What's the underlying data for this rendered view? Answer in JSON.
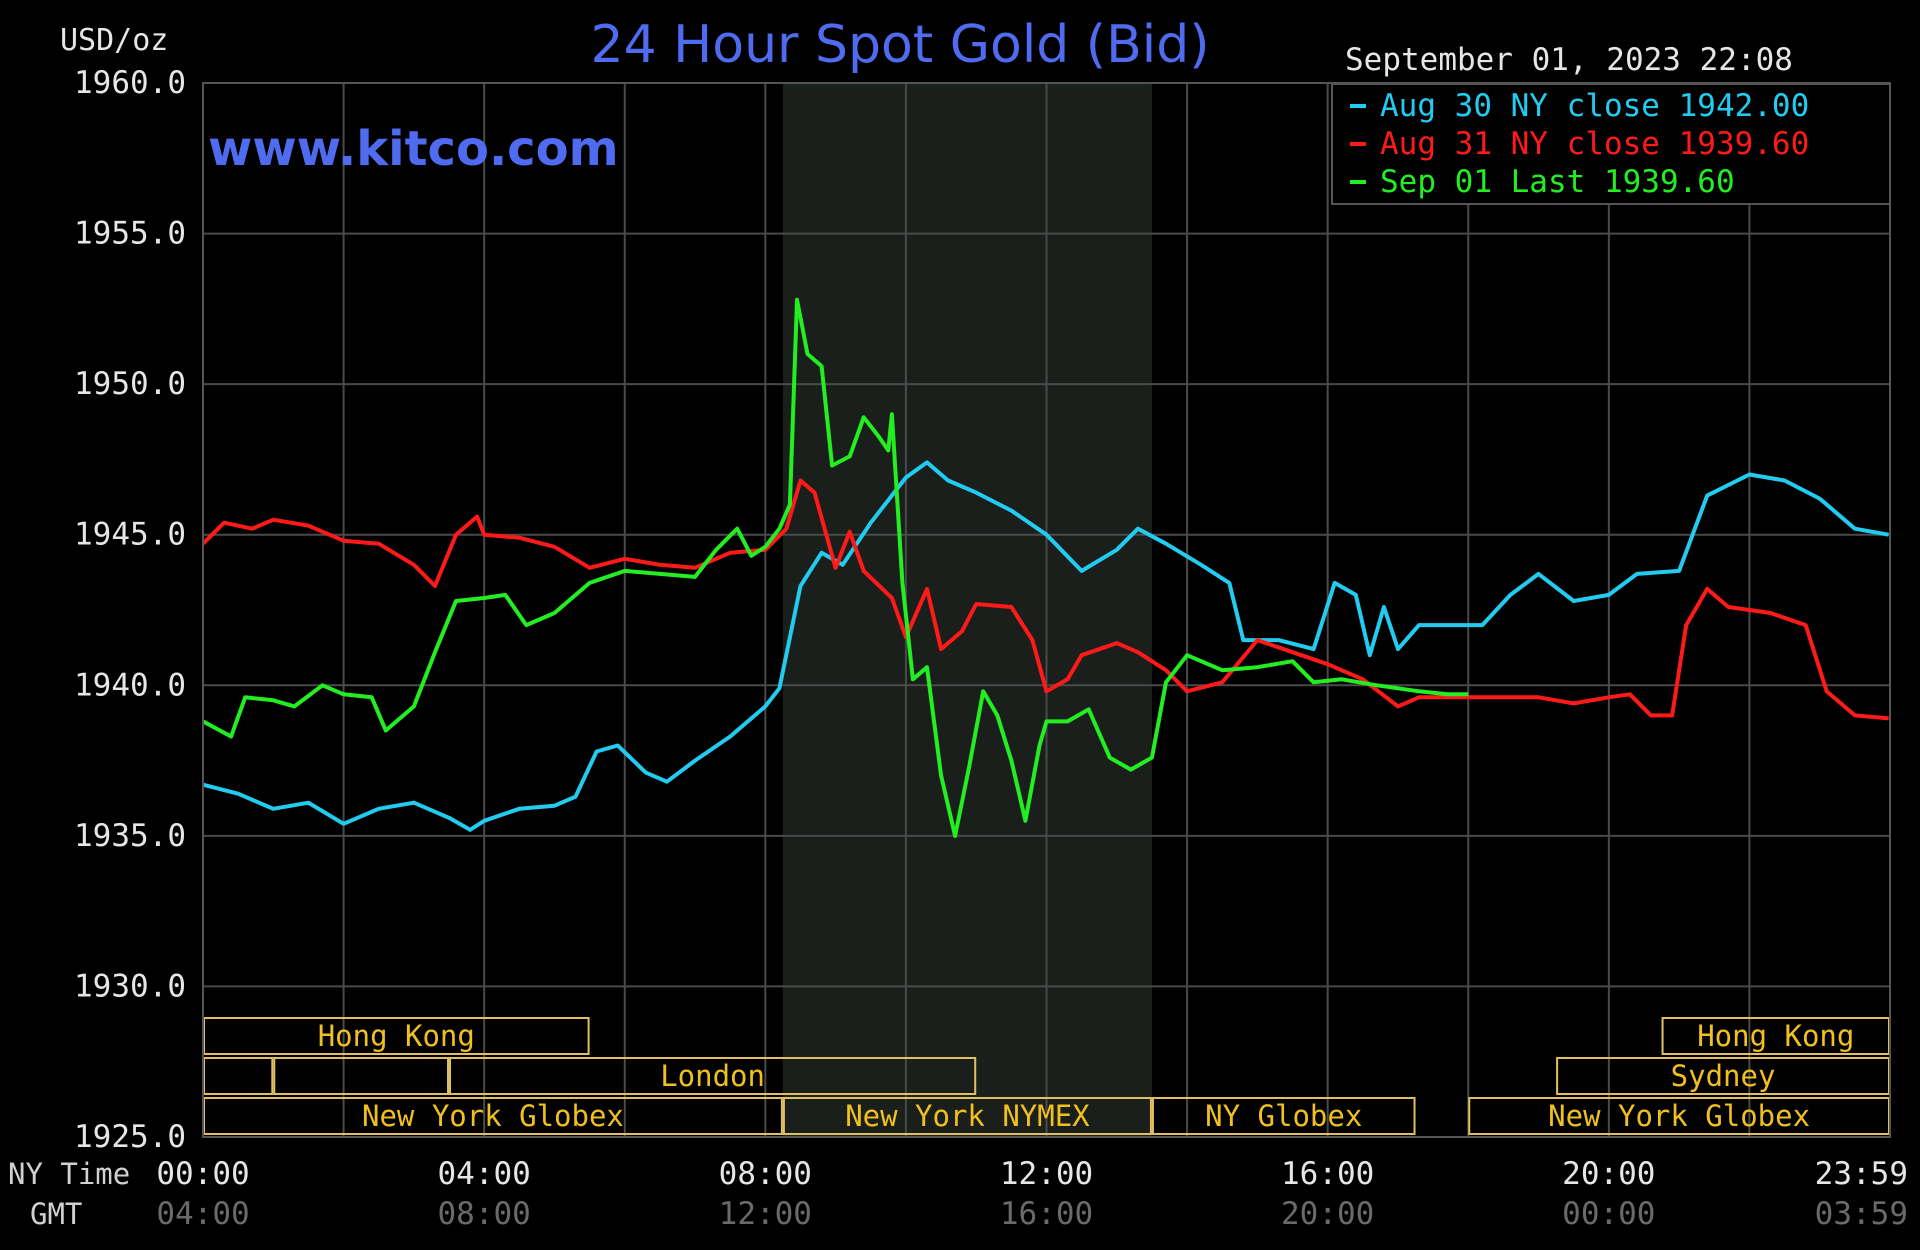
{
  "chart_data": {
    "type": "line",
    "title": "24 Hour Spot Gold (Bid)",
    "unit_label": "USD/oz",
    "watermark": "www.kitco.com",
    "timestamp": "September 01, 2023 22:08",
    "x_row_labels": {
      "ny": "NY Time",
      "gmt": "GMT"
    },
    "x_ticks_ny": [
      "00:00",
      "04:00",
      "08:00",
      "12:00",
      "16:00",
      "20:00",
      "23:59"
    ],
    "x_ticks_gmt": [
      "04:00",
      "08:00",
      "12:00",
      "16:00",
      "20:00",
      "00:00",
      "03:59"
    ],
    "x_tick_hours": [
      0,
      4,
      8,
      12,
      16,
      20,
      23.983
    ],
    "xlim_hours": [
      0,
      24
    ],
    "ylim": [
      1925,
      1960
    ],
    "y_ticks": [
      "1960.0",
      "1955.0",
      "1950.0",
      "1945.0",
      "1940.0",
      "1935.0",
      "1930.0",
      "1925.0"
    ],
    "grid": true,
    "legend_position": "top-right",
    "nymex_session_hours": [
      8.25,
      13.5
    ],
    "sessions": [
      {
        "label": "Hong Kong",
        "start": 0,
        "end": 5.5,
        "row": 0
      },
      {
        "label": "Hong Kong",
        "start": 20.75,
        "end": 24,
        "row": 0
      },
      {
        "label": "",
        "start": 0,
        "end": 1,
        "row": 1
      },
      {
        "label": "",
        "start": 1,
        "end": 3.5,
        "row": 1
      },
      {
        "label": "London",
        "start": 3.5,
        "end": 11.0,
        "row": 1
      },
      {
        "label": "Sydney",
        "start": 19.25,
        "end": 24,
        "row": 1
      },
      {
        "label": "New York Globex",
        "start": 0,
        "end": 8.25,
        "row": 2
      },
      {
        "label": "New York NYMEX",
        "start": 8.25,
        "end": 13.5,
        "row": 2
      },
      {
        "label": "NY Globex",
        "start": 13.5,
        "end": 17.25,
        "row": 2
      },
      {
        "label": "New York Globex",
        "start": 18.0,
        "end": 24,
        "row": 2
      }
    ],
    "series": [
      {
        "name": "Aug 30 NY close 1942.00",
        "color": "#22ccf0",
        "points": [
          [
            0,
            1936.7
          ],
          [
            0.5,
            1936.4
          ],
          [
            1,
            1935.9
          ],
          [
            1.5,
            1936.1
          ],
          [
            2,
            1935.4
          ],
          [
            2.5,
            1935.9
          ],
          [
            3,
            1936.1
          ],
          [
            3.5,
            1935.6
          ],
          [
            3.8,
            1935.2
          ],
          [
            4,
            1935.5
          ],
          [
            4.5,
            1935.9
          ],
          [
            5,
            1936.0
          ],
          [
            5.3,
            1936.3
          ],
          [
            5.6,
            1937.8
          ],
          [
            5.9,
            1938.0
          ],
          [
            6.3,
            1937.1
          ],
          [
            6.6,
            1936.8
          ],
          [
            7,
            1937.5
          ],
          [
            7.5,
            1938.3
          ],
          [
            8,
            1939.3
          ],
          [
            8.2,
            1939.9
          ],
          [
            8.5,
            1943.3
          ],
          [
            8.8,
            1944.4
          ],
          [
            9.1,
            1944.0
          ],
          [
            9.5,
            1945.4
          ],
          [
            10,
            1946.9
          ],
          [
            10.3,
            1947.4
          ],
          [
            10.6,
            1946.8
          ],
          [
            11,
            1946.4
          ],
          [
            11.5,
            1945.8
          ],
          [
            12,
            1945.0
          ],
          [
            12.5,
            1943.8
          ],
          [
            13,
            1944.5
          ],
          [
            13.3,
            1945.2
          ],
          [
            13.7,
            1944.7
          ],
          [
            14.2,
            1944.0
          ],
          [
            14.6,
            1943.4
          ],
          [
            14.8,
            1941.5
          ],
          [
            15.3,
            1941.5
          ],
          [
            15.8,
            1941.2
          ],
          [
            16.1,
            1943.4
          ],
          [
            16.4,
            1943.0
          ],
          [
            16.6,
            1941.0
          ],
          [
            16.8,
            1942.6
          ],
          [
            17,
            1941.2
          ],
          [
            17.3,
            1942.0
          ],
          [
            17.8,
            1942.0
          ],
          [
            18.2,
            1942.0
          ],
          [
            18.6,
            1943.0
          ],
          [
            19,
            1943.7
          ],
          [
            19.5,
            1942.8
          ],
          [
            20,
            1943.0
          ],
          [
            20.4,
            1943.7
          ],
          [
            21,
            1943.8
          ],
          [
            21.4,
            1946.3
          ],
          [
            22,
            1947.0
          ],
          [
            22.5,
            1946.8
          ],
          [
            23,
            1946.2
          ],
          [
            23.5,
            1945.2
          ],
          [
            23.98,
            1945.0
          ]
        ]
      },
      {
        "name": "Aug 31 NY close 1939.60",
        "color": "#ff1a1a",
        "points": [
          [
            0,
            1944.7
          ],
          [
            0.3,
            1945.4
          ],
          [
            0.7,
            1945.2
          ],
          [
            1,
            1945.5
          ],
          [
            1.5,
            1945.3
          ],
          [
            2,
            1944.8
          ],
          [
            2.5,
            1944.7
          ],
          [
            3,
            1944.0
          ],
          [
            3.3,
            1943.3
          ],
          [
            3.6,
            1945.0
          ],
          [
            3.9,
            1945.6
          ],
          [
            4,
            1945.0
          ],
          [
            4.5,
            1944.9
          ],
          [
            5,
            1944.6
          ],
          [
            5.5,
            1943.9
          ],
          [
            6,
            1944.2
          ],
          [
            6.5,
            1944.0
          ],
          [
            7,
            1943.9
          ],
          [
            7.5,
            1944.4
          ],
          [
            8,
            1944.5
          ],
          [
            8.3,
            1945.2
          ],
          [
            8.5,
            1946.8
          ],
          [
            8.7,
            1946.4
          ],
          [
            9,
            1943.9
          ],
          [
            9.2,
            1945.1
          ],
          [
            9.4,
            1943.8
          ],
          [
            9.8,
            1942.9
          ],
          [
            10,
            1941.6
          ],
          [
            10.3,
            1943.2
          ],
          [
            10.5,
            1941.2
          ],
          [
            10.8,
            1941.8
          ],
          [
            11,
            1942.7
          ],
          [
            11.5,
            1942.6
          ],
          [
            11.8,
            1941.5
          ],
          [
            12,
            1939.8
          ],
          [
            12.3,
            1940.2
          ],
          [
            12.5,
            1941.0
          ],
          [
            13,
            1941.4
          ],
          [
            13.3,
            1941.1
          ],
          [
            13.7,
            1940.5
          ],
          [
            14,
            1939.8
          ],
          [
            14.5,
            1940.1
          ],
          [
            15,
            1941.5
          ],
          [
            15.5,
            1941.1
          ],
          [
            16,
            1940.7
          ],
          [
            16.5,
            1940.2
          ],
          [
            17,
            1939.3
          ],
          [
            17.3,
            1939.6
          ],
          [
            17.8,
            1939.6
          ],
          [
            18.5,
            1939.6
          ],
          [
            19,
            1939.6
          ],
          [
            19.5,
            1939.4
          ],
          [
            20,
            1939.6
          ],
          [
            20.3,
            1939.7
          ],
          [
            20.6,
            1939.0
          ],
          [
            20.9,
            1939.0
          ],
          [
            21.1,
            1942.0
          ],
          [
            21.4,
            1943.2
          ],
          [
            21.7,
            1942.6
          ],
          [
            22.3,
            1942.4
          ],
          [
            22.8,
            1942.0
          ],
          [
            23.1,
            1939.8
          ],
          [
            23.5,
            1939.0
          ],
          [
            23.98,
            1938.9
          ]
        ]
      },
      {
        "name": "Sep 01 Last 1939.60",
        "color": "#22ee22",
        "points": [
          [
            0,
            1938.8
          ],
          [
            0.4,
            1938.3
          ],
          [
            0.6,
            1939.6
          ],
          [
            1,
            1939.5
          ],
          [
            1.3,
            1939.3
          ],
          [
            1.7,
            1940.0
          ],
          [
            2,
            1939.7
          ],
          [
            2.4,
            1939.6
          ],
          [
            2.6,
            1938.5
          ],
          [
            3,
            1939.3
          ],
          [
            3.3,
            1941.1
          ],
          [
            3.6,
            1942.8
          ],
          [
            4,
            1942.9
          ],
          [
            4.3,
            1943.0
          ],
          [
            4.6,
            1942.0
          ],
          [
            5,
            1942.4
          ],
          [
            5.5,
            1943.4
          ],
          [
            6,
            1943.8
          ],
          [
            6.5,
            1943.7
          ],
          [
            7,
            1943.6
          ],
          [
            7.3,
            1944.5
          ],
          [
            7.6,
            1945.2
          ],
          [
            7.8,
            1944.3
          ],
          [
            8,
            1944.6
          ],
          [
            8.2,
            1945.2
          ],
          [
            8.35,
            1946.0
          ],
          [
            8.45,
            1952.8
          ],
          [
            8.6,
            1951.0
          ],
          [
            8.8,
            1950.6
          ],
          [
            8.95,
            1947.3
          ],
          [
            9.2,
            1947.6
          ],
          [
            9.4,
            1948.9
          ],
          [
            9.6,
            1948.3
          ],
          [
            9.75,
            1947.8
          ],
          [
            9.8,
            1949.0
          ],
          [
            9.95,
            1943.4
          ],
          [
            10.1,
            1940.2
          ],
          [
            10.3,
            1940.6
          ],
          [
            10.5,
            1937.0
          ],
          [
            10.7,
            1935.0
          ],
          [
            10.9,
            1937.3
          ],
          [
            11.1,
            1939.8
          ],
          [
            11.3,
            1939.0
          ],
          [
            11.5,
            1937.5
          ],
          [
            11.7,
            1935.5
          ],
          [
            11.9,
            1938.0
          ],
          [
            12,
            1938.8
          ],
          [
            12.3,
            1938.8
          ],
          [
            12.6,
            1939.2
          ],
          [
            12.9,
            1937.6
          ],
          [
            13.2,
            1937.2
          ],
          [
            13.5,
            1937.6
          ],
          [
            13.7,
            1940.1
          ],
          [
            14,
            1941.0
          ],
          [
            14.5,
            1940.5
          ],
          [
            15,
            1940.6
          ],
          [
            15.5,
            1940.8
          ],
          [
            15.8,
            1940.1
          ],
          [
            16.2,
            1940.2
          ],
          [
            16.7,
            1940.0
          ],
          [
            17,
            1939.9
          ],
          [
            17.3,
            1939.8
          ],
          [
            17.7,
            1939.7
          ],
          [
            18.0,
            1939.7
          ]
        ]
      }
    ]
  }
}
